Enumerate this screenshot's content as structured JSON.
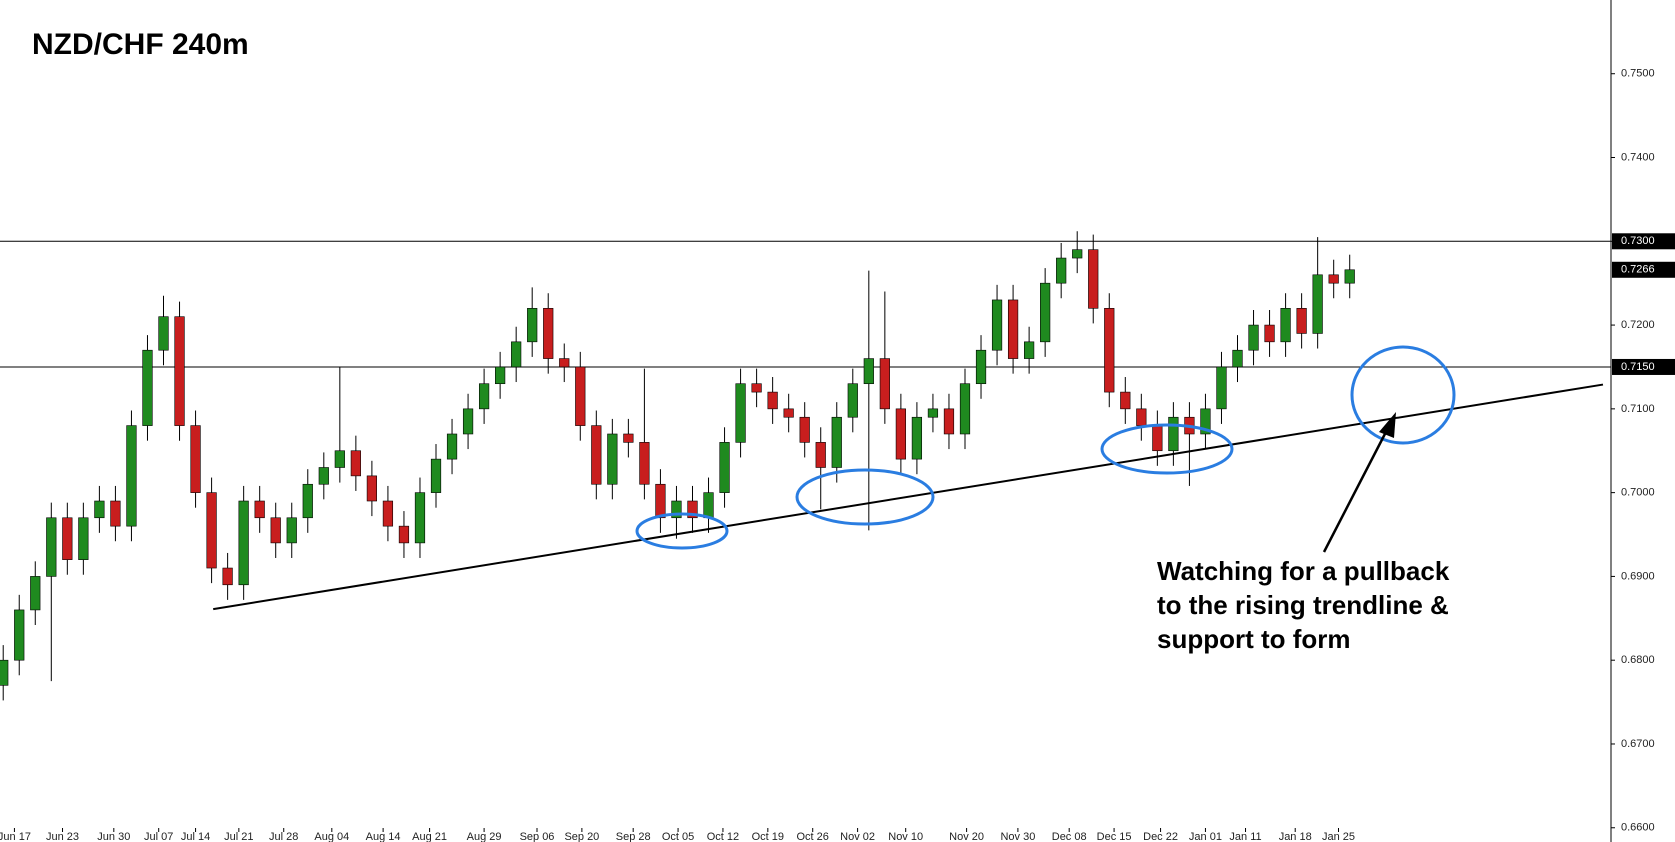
{
  "chart_data": {
    "type": "candlestick",
    "title": "NZD/CHF 240m",
    "annotation": [
      "Watching for a pullback",
      "to the rising trendline &",
      "support to form"
    ],
    "up_color": "#1f8a1f",
    "down_color": "#c81e1e",
    "xlim": [
      -0.2,
      100.3
    ],
    "xticks": [
      {
        "value": 0.7,
        "label": "Jun 17"
      },
      {
        "value": 3.7,
        "label": "Jun 23"
      },
      {
        "value": 6.9,
        "label": "Jun 30"
      },
      {
        "value": 9.7,
        "label": "Jul 07"
      },
      {
        "value": 12,
        "label": "Jul 14"
      },
      {
        "value": 14.7,
        "label": "Jul 21"
      },
      {
        "value": 17.5,
        "label": "Jul 28"
      },
      {
        "value": 20.5,
        "label": "Aug 04"
      },
      {
        "value": 23.7,
        "label": "Aug 14"
      },
      {
        "value": 26.6,
        "label": "Aug 21"
      },
      {
        "value": 30,
        "label": "Aug 29"
      },
      {
        "value": 33.3,
        "label": "Sep 06"
      },
      {
        "value": 36.1,
        "label": "Sep 20"
      },
      {
        "value": 39.3,
        "label": "Sep 28"
      },
      {
        "value": 42.1,
        "label": "Oct 05"
      },
      {
        "value": 44.9,
        "label": "Oct 12"
      },
      {
        "value": 47.7,
        "label": "Oct 19"
      },
      {
        "value": 50.5,
        "label": "Oct 26"
      },
      {
        "value": 53.3,
        "label": "Nov 02"
      },
      {
        "value": 56.3,
        "label": "Nov 10"
      },
      {
        "value": 60.1,
        "label": "Nov 20"
      },
      {
        "value": 63.3,
        "label": "Nov 30"
      },
      {
        "value": 66.5,
        "label": "Dec 08"
      },
      {
        "value": 69.3,
        "label": "Dec 15"
      },
      {
        "value": 72.2,
        "label": "Dec 22"
      },
      {
        "value": 75,
        "label": "Jan 01"
      },
      {
        "value": 77.5,
        "label": "Jan 11"
      },
      {
        "value": 80.6,
        "label": "Jan 18"
      },
      {
        "value": 83.3,
        "label": "Jan 25"
      }
    ],
    "ylim": [
      0.6583,
      0.7588
    ],
    "yticks": [
      {
        "value": 0.66,
        "label": "0.6600"
      },
      {
        "value": 0.67,
        "label": "0.6700"
      },
      {
        "value": 0.68,
        "label": "0.6800"
      },
      {
        "value": 0.69,
        "label": "0.6900"
      },
      {
        "value": 0.7,
        "label": "0.7000"
      },
      {
        "value": 0.71,
        "label": "0.7100"
      },
      {
        "value": 0.72,
        "label": "0.7200"
      },
      {
        "value": 0.73,
        "label": "0.7300"
      },
      {
        "value": 0.74,
        "label": "0.7400"
      },
      {
        "value": 0.75,
        "label": "0.7500"
      }
    ],
    "levels": [
      {
        "value": 0.73,
        "label": "0.7300"
      },
      {
        "value": 0.715,
        "label": "0.7150"
      }
    ],
    "last_price": {
      "value": 0.7266,
      "label": "0.7266"
    },
    "trendline": {
      "x": [
        13.1,
        99.8
      ],
      "y": [
        0.6861,
        0.7129
      ]
    },
    "open": [
      0.677,
      0.68,
      0.686,
      0.69,
      0.697,
      0.692,
      0.697,
      0.699,
      0.696,
      0.708,
      0.717,
      0.721,
      0.708,
      0.7,
      0.691,
      0.689,
      0.699,
      0.697,
      0.694,
      0.697,
      0.701,
      0.703,
      0.705,
      0.702,
      0.699,
      0.696,
      0.694,
      0.7,
      0.704,
      0.707,
      0.71,
      0.713,
      0.715,
      0.718,
      0.722,
      0.716,
      0.715,
      0.708,
      0.701,
      0.707,
      0.706,
      0.701,
      0.697,
      0.699,
      0.697,
      0.7,
      0.706,
      0.713,
      0.712,
      0.71,
      0.709,
      0.706,
      0.703,
      0.709,
      0.713,
      0.716,
      0.71,
      0.704,
      0.709,
      0.71,
      0.707,
      0.713,
      0.717,
      0.723,
      0.716,
      0.718,
      0.725,
      0.728,
      0.729,
      0.722,
      0.712,
      0.71,
      0.708,
      0.705,
      0.709,
      0.707,
      0.71,
      0.715,
      0.717,
      0.72,
      0.718,
      0.722,
      0.719,
      0.726,
      0.725
    ],
    "high": [
      0.6818,
      0.6878,
      0.6918,
      0.6988,
      0.6988,
      0.6988,
      0.7008,
      0.7008,
      0.7098,
      0.7188,
      0.7235,
      0.7228,
      0.7098,
      0.7018,
      0.6928,
      0.7008,
      0.7008,
      0.6988,
      0.6988,
      0.7028,
      0.7048,
      0.715,
      0.7068,
      0.7038,
      0.7008,
      0.6978,
      0.7018,
      0.7058,
      0.7088,
      0.7118,
      0.7148,
      0.7168,
      0.7198,
      0.7245,
      0.7238,
      0.7178,
      0.7168,
      0.7098,
      0.7088,
      0.7088,
      0.7148,
      0.7028,
      0.7008,
      0.7008,
      0.7018,
      0.7078,
      0.7148,
      0.7148,
      0.7138,
      0.7118,
      0.7108,
      0.7078,
      0.7108,
      0.7148,
      0.7265,
      0.724,
      0.7118,
      0.7108,
      0.7118,
      0.7118,
      0.7148,
      0.7188,
      0.7248,
      0.7248,
      0.7198,
      0.7268,
      0.7298,
      0.7312,
      0.7308,
      0.7238,
      0.7138,
      0.7118,
      0.7098,
      0.7108,
      0.7108,
      0.7118,
      0.7168,
      0.7188,
      0.7218,
      0.7218,
      0.7238,
      0.7238,
      0.7305,
      0.7278,
      0.7284
    ],
    "low": [
      0.6752,
      0.6782,
      0.6842,
      0.6775,
      0.6902,
      0.6902,
      0.6952,
      0.6942,
      0.6942,
      0.7062,
      0.7152,
      0.7062,
      0.6982,
      0.6892,
      0.6872,
      0.6872,
      0.6952,
      0.6922,
      0.6922,
      0.6952,
      0.6992,
      0.7012,
      0.7002,
      0.6972,
      0.6942,
      0.6922,
      0.6922,
      0.6982,
      0.7022,
      0.7052,
      0.7082,
      0.7112,
      0.7132,
      0.7162,
      0.7142,
      0.7132,
      0.7062,
      0.6992,
      0.6992,
      0.7042,
      0.6992,
      0.6952,
      0.6945,
      0.6952,
      0.6952,
      0.6982,
      0.7042,
      0.7102,
      0.7082,
      0.7072,
      0.7042,
      0.698,
      0.7012,
      0.7072,
      0.6955,
      0.7082,
      0.7022,
      0.7022,
      0.7072,
      0.7052,
      0.7052,
      0.7112,
      0.7152,
      0.7142,
      0.7142,
      0.7162,
      0.7232,
      0.7262,
      0.7202,
      0.7102,
      0.7082,
      0.7062,
      0.7032,
      0.7032,
      0.7008,
      0.7052,
      0.7082,
      0.7132,
      0.7152,
      0.7162,
      0.7162,
      0.7172,
      0.7172,
      0.7232,
      0.7232
    ],
    "close": [
      0.68,
      0.686,
      0.69,
      0.697,
      0.692,
      0.697,
      0.699,
      0.696,
      0.708,
      0.717,
      0.721,
      0.708,
      0.7,
      0.691,
      0.689,
      0.699,
      0.697,
      0.694,
      0.697,
      0.701,
      0.703,
      0.705,
      0.702,
      0.699,
      0.696,
      0.694,
      0.7,
      0.704,
      0.707,
      0.71,
      0.713,
      0.715,
      0.718,
      0.722,
      0.716,
      0.715,
      0.708,
      0.701,
      0.707,
      0.706,
      0.701,
      0.697,
      0.699,
      0.697,
      0.7,
      0.706,
      0.713,
      0.712,
      0.71,
      0.709,
      0.706,
      0.703,
      0.709,
      0.713,
      0.716,
      0.71,
      0.704,
      0.709,
      0.71,
      0.707,
      0.713,
      0.717,
      0.723,
      0.716,
      0.718,
      0.725,
      0.728,
      0.729,
      0.722,
      0.712,
      0.71,
      0.708,
      0.705,
      0.709,
      0.707,
      0.71,
      0.715,
      0.717,
      0.72,
      0.718,
      0.722,
      0.719,
      0.726,
      0.725,
      0.7266
    ]
  }
}
